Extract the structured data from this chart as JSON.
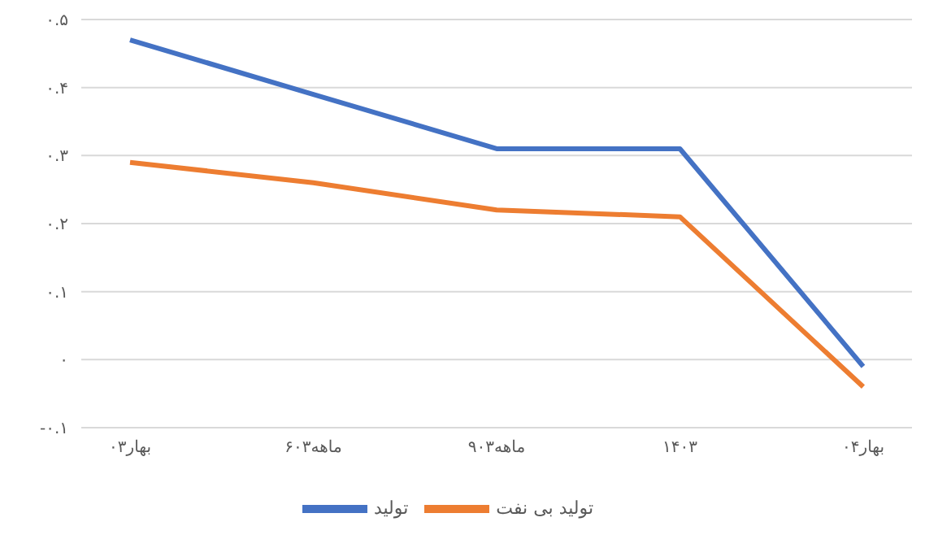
{
  "chart_data": {
    "type": "line",
    "categories": [
      "بهار۰۳",
      "۶ماهه۰۳",
      "۹ماهه۰۳",
      "۱۴۰۳",
      "بهار۰۴"
    ],
    "series": [
      {
        "name": "تولید",
        "color": "#4472c4",
        "values": [
          0.47,
          0.39,
          0.31,
          0.31,
          -0.01
        ]
      },
      {
        "name": "تولید بی نفت",
        "color": "#ed7d31",
        "values": [
          0.29,
          0.26,
          0.22,
          0.21,
          -0.04
        ]
      }
    ],
    "ylim": [
      -0.1,
      0.5
    ],
    "yticks": [
      {
        "value": -0.1,
        "label": "-۰.۱"
      },
      {
        "value": 0,
        "label": "۰"
      },
      {
        "value": 0.1,
        "label": "۰.۱"
      },
      {
        "value": 0.2,
        "label": "۰.۲"
      },
      {
        "value": 0.3,
        "label": "۰.۳"
      },
      {
        "value": 0.4,
        "label": "۰.۴"
      },
      {
        "value": 0.5,
        "label": "۰.۵"
      }
    ],
    "grid": "y",
    "legend": "bottom",
    "marker": "none",
    "line_style": "solid"
  }
}
